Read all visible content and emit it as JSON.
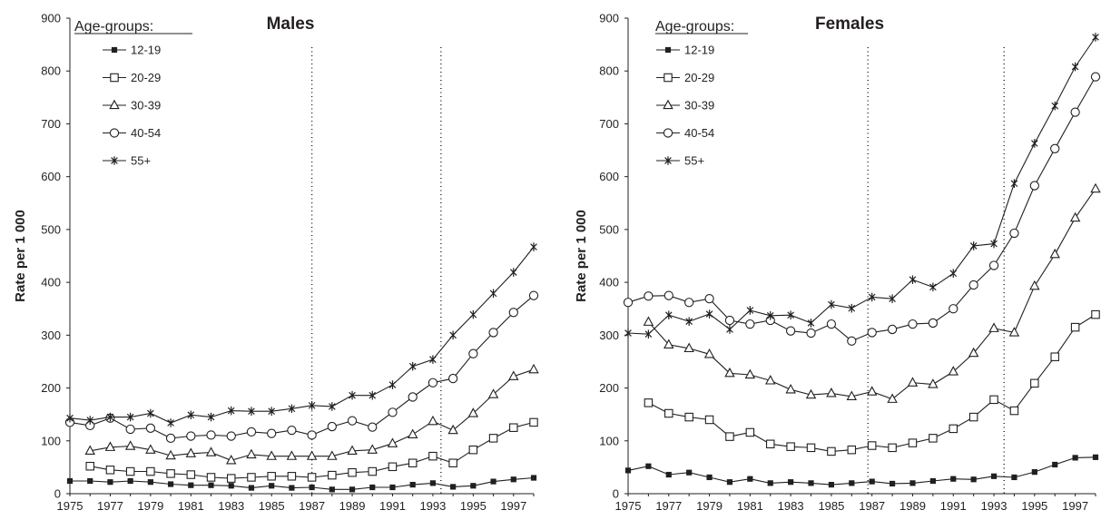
{
  "chart_data": [
    {
      "type": "line",
      "title": "Males",
      "ylabel": "Rate per 1 000",
      "xlabel": "",
      "legend_title": "Age-groups:",
      "ylim": [
        0,
        900
      ],
      "yticks": [
        "0",
        "100",
        "200",
        "300",
        "400",
        "500",
        "600",
        "700",
        "800",
        "900"
      ],
      "xlim": [
        1975,
        1998
      ],
      "xticks": [
        "1975",
        "1977",
        "1979",
        "1981",
        "1983",
        "1985",
        "1987",
        "1989",
        "1991",
        "1993",
        "1995",
        "1997"
      ],
      "vlines": [
        1987.0,
        1993.4
      ],
      "legend_position": "top-left",
      "x": [
        1975,
        1976,
        1977,
        1978,
        1979,
        1980,
        1981,
        1982,
        1983,
        1984,
        1985,
        1986,
        1987,
        1988,
        1989,
        1990,
        1991,
        1992,
        1993,
        1994,
        1995,
        1996,
        1997,
        1998
      ],
      "series": [
        {
          "name": "12-19",
          "marker": "filled-square",
          "values": [
            24,
            24,
            22,
            24,
            22,
            18,
            16,
            16,
            15,
            11,
            15,
            11,
            12,
            8,
            8,
            12,
            12,
            17,
            20,
            13,
            15,
            23,
            27,
            30
          ]
        },
        {
          "name": "20-29",
          "marker": "open-square",
          "values": [
            null,
            52,
            45,
            42,
            42,
            38,
            36,
            31,
            29,
            31,
            33,
            33,
            31,
            35,
            40,
            42,
            51,
            58,
            71,
            58,
            83,
            105,
            125,
            135
          ]
        },
        {
          "name": "30-39",
          "marker": "open-triangle",
          "values": [
            null,
            81,
            88,
            90,
            83,
            72,
            76,
            78,
            63,
            74,
            71,
            71,
            71,
            71,
            81,
            83,
            95,
            112,
            137,
            120,
            152,
            188,
            222,
            235
          ]
        },
        {
          "name": "40-54",
          "marker": "open-circle",
          "values": [
            135,
            129,
            143,
            122,
            124,
            105,
            109,
            111,
            109,
            117,
            114,
            120,
            111,
            127,
            138,
            126,
            154,
            183,
            210,
            218,
            265,
            305,
            343,
            375
          ]
        },
        {
          "name": "55+",
          "marker": "asterisk",
          "values": [
            143,
            139,
            145,
            145,
            152,
            134,
            149,
            145,
            157,
            156,
            156,
            161,
            167,
            165,
            186,
            186,
            206,
            241,
            254,
            300,
            339,
            379,
            419,
            467
          ]
        }
      ]
    },
    {
      "type": "line",
      "title": "Females",
      "ylabel": "Rate per 1 000",
      "xlabel": "",
      "legend_title": "Age-groups:",
      "ylim": [
        0,
        900
      ],
      "yticks": [
        "0",
        "100",
        "200",
        "300",
        "400",
        "500",
        "600",
        "700",
        "800",
        "900"
      ],
      "xlim": [
        1975,
        1998
      ],
      "xticks": [
        "1975",
        "1977",
        "1979",
        "1981",
        "1983",
        "1985",
        "1987",
        "1989",
        "1991",
        "1993",
        "1995",
        "1997"
      ],
      "vlines": [
        1986.8,
        1993.5
      ],
      "legend_position": "top-left",
      "x": [
        1975,
        1976,
        1977,
        1978,
        1979,
        1980,
        1981,
        1982,
        1983,
        1984,
        1985,
        1986,
        1987,
        1988,
        1989,
        1990,
        1991,
        1992,
        1993,
        1994,
        1995,
        1996,
        1997,
        1998
      ],
      "series": [
        {
          "name": "12-19",
          "marker": "filled-square",
          "values": [
            44,
            52,
            36,
            40,
            31,
            22,
            28,
            20,
            22,
            20,
            17,
            20,
            23,
            19,
            20,
            24,
            28,
            27,
            33,
            31,
            41,
            55,
            68,
            69
          ]
        },
        {
          "name": "20-29",
          "marker": "open-square",
          "values": [
            null,
            172,
            152,
            145,
            140,
            108,
            116,
            94,
            89,
            87,
            80,
            83,
            91,
            87,
            96,
            105,
            123,
            145,
            178,
            157,
            209,
            259,
            315,
            339
          ]
        },
        {
          "name": "30-39",
          "marker": "open-triangle",
          "values": [
            null,
            325,
            282,
            275,
            264,
            228,
            225,
            214,
            197,
            187,
            190,
            184,
            193,
            179,
            210,
            207,
            231,
            266,
            313,
            305,
            393,
            453,
            522,
            577
          ]
        },
        {
          "name": "40-54",
          "marker": "open-circle",
          "values": [
            362,
            374,
            375,
            362,
            369,
            328,
            321,
            328,
            308,
            304,
            321,
            289,
            305,
            311,
            321,
            323,
            350,
            395,
            432,
            493,
            583,
            653,
            722,
            789
          ]
        },
        {
          "name": "55+",
          "marker": "asterisk",
          "values": [
            304,
            302,
            338,
            326,
            340,
            311,
            347,
            337,
            338,
            323,
            358,
            351,
            372,
            369,
            405,
            391,
            417,
            469,
            473,
            587,
            663,
            734,
            808,
            864
          ]
        }
      ]
    }
  ]
}
